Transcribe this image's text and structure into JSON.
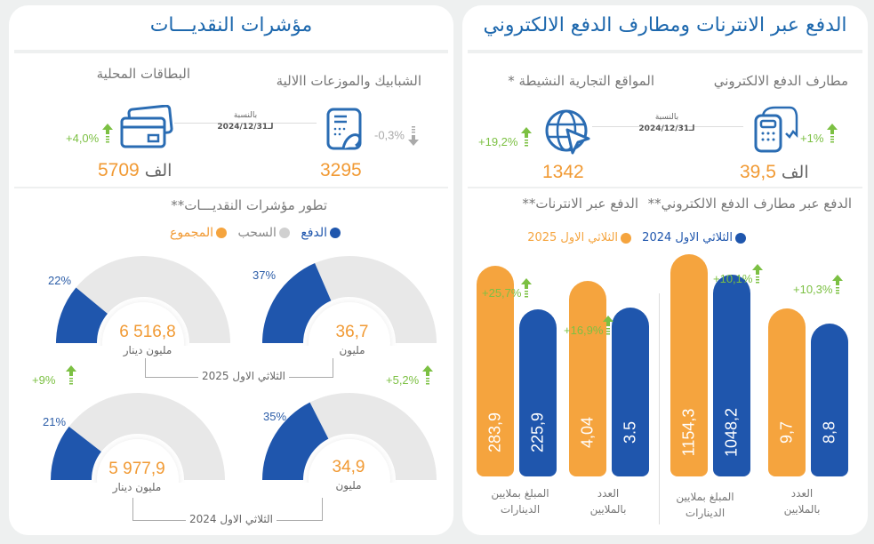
{
  "colors": {
    "blue": "#1f56ad",
    "orange": "#f5a43e",
    "gray": "#e8e8e8",
    "green": "#7cc043",
    "title": "#1c67ad"
  },
  "left_panel": {
    "title": "مؤشرات النقديـــات",
    "kpis": [
      {
        "label": "البطاقات المحلية",
        "value": "5709",
        "unit": "الف",
        "change": "+4,0%",
        "direction": "up",
        "icon": "credit-card-icon"
      },
      {
        "label": "الشبابيك والموزعات االالية",
        "value": "3295",
        "unit": "",
        "change": "-0,3%",
        "direction": "down",
        "icon": "atm-hand-icon"
      }
    ],
    "ratio_top": "بالنسبة",
    "ratio_bottom": "لـ2024/12/31",
    "section_title": "تطور مؤشرات النقديـــات**",
    "legend": [
      {
        "label": "الدفع",
        "color": "#1f56ad"
      },
      {
        "label": "السحب",
        "color": "#d0d0d0"
      },
      {
        "label": "المجموع",
        "color": "#f5a43e"
      }
    ],
    "period_2025": "الثلاثي الاول 2025",
    "period_2024": "الثلاثي الاول 2024",
    "change_amount": "+9%",
    "change_count": "+5,2%"
  },
  "right_panel": {
    "title": "الدفع عبر الانترنات ومطارف الدفع الالكتروني",
    "kpis": [
      {
        "label": "مطارف الدفع الالكتروني",
        "value": "39,5",
        "unit": "الف",
        "change": "+1%",
        "direction": "up",
        "icon": "payment-terminal-icon"
      },
      {
        "label": "المواقع التجارية النشيطة *",
        "value": "1342",
        "unit": "",
        "change": "+19,2%",
        "direction": "up",
        "icon": "globe-cursor-icon"
      }
    ],
    "ratio_top": "بالنسبة",
    "ratio_bottom": "لـ2024/12/31",
    "section_titles": [
      "الدفع عبر مطارف الدفع الالكتروني**",
      "الدفع عبر الانترنات**"
    ],
    "legend": [
      {
        "label": "الثلاثي الاول 2024",
        "color": "#1f56ad"
      },
      {
        "label": "الثلاثي الاول 2025",
        "color": "#f5a43e"
      }
    ]
  },
  "chart_data": [
    {
      "type": "pie",
      "title": "تطور مؤشرات النقديـــات**",
      "gauges": [
        {
          "period": "الثلاثي الاول 2025",
          "total": "6 516,8",
          "unit": "مليون دينار",
          "payment_share_pct": 22
        },
        {
          "period": "الثلاثي الاول 2025",
          "total": "36,7",
          "unit": "مليون",
          "payment_share_pct": 37
        },
        {
          "period": "الثلاثي الاول 2024",
          "total": "5 977,9",
          "unit": "مليون دينار",
          "payment_share_pct": 21
        },
        {
          "period": "الثلاثي الاول 2024",
          "total": "34,9",
          "unit": "مليون",
          "payment_share_pct": 35
        }
      ]
    },
    {
      "type": "bar",
      "title": "الدفع عبر الانترنات**",
      "groups": [
        {
          "label": "المبلغ بملايين الدينارات",
          "values_2025": 283.9,
          "values_2024": 225.9,
          "label_2025": "283,9",
          "label_2024": "225,9",
          "change": "+25,7%",
          "scale": 300
        },
        {
          "label": "العدد بالملايين",
          "values_2025": 4.04,
          "values_2024": 3.5,
          "label_2025": "4,04",
          "label_2024": "3.5",
          "change": "+16,9%",
          "scale": 4.6
        }
      ]
    },
    {
      "type": "bar",
      "title": "الدفع عبر مطارف الدفع الالكتروني**",
      "groups": [
        {
          "label": "المبلغ بملايين الدينارات",
          "values_2025": 1154.3,
          "values_2024": 1048.2,
          "label_2025": "1154,3",
          "label_2024": "1048,2",
          "change": "+10,1%",
          "scale": 1154.3
        },
        {
          "label": "العدد بالملايين",
          "values_2025": 9.7,
          "values_2024": 8.8,
          "label_2025": "9,7",
          "label_2024": "8,8",
          "change": "+10,3%",
          "scale": 12.8
        }
      ]
    }
  ]
}
